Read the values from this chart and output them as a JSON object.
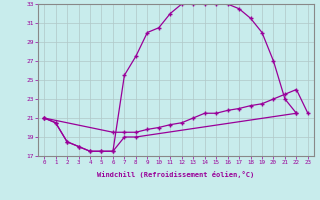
{
  "xlabel": "Windchill (Refroidissement éolien,°C)",
  "bg_color": "#c8ecec",
  "line_color": "#990099",
  "grid_color": "#b0c8c8",
  "xlim": [
    -0.5,
    23.5
  ],
  "ylim": [
    17,
    33
  ],
  "yticks": [
    17,
    19,
    21,
    23,
    25,
    27,
    29,
    31,
    33
  ],
  "xticks": [
    0,
    1,
    2,
    3,
    4,
    5,
    6,
    7,
    8,
    9,
    10,
    11,
    12,
    13,
    14,
    15,
    16,
    17,
    18,
    19,
    20,
    21,
    22,
    23
  ],
  "line1_x": [
    0,
    1,
    2,
    3,
    4,
    5,
    6,
    7,
    8,
    9,
    10,
    11,
    12,
    13,
    14,
    15,
    16,
    17,
    18,
    19,
    20,
    21,
    22
  ],
  "line1_y": [
    21.0,
    20.5,
    18.5,
    18.0,
    17.5,
    17.5,
    17.5,
    25.5,
    27.5,
    30.0,
    30.5,
    32.0,
    33.0,
    33.0,
    33.0,
    33.0,
    33.0,
    32.5,
    31.5,
    30.0,
    27.0,
    23.0,
    21.5
  ],
  "line2_x": [
    0,
    1,
    2,
    3,
    4,
    5,
    6,
    7,
    8,
    22
  ],
  "line2_y": [
    21.0,
    20.5,
    18.5,
    18.0,
    17.5,
    17.5,
    17.5,
    19.0,
    19.0,
    21.5
  ],
  "line3_x": [
    0,
    6,
    7,
    8,
    9,
    10,
    11,
    12,
    13,
    14,
    15,
    16,
    17,
    18,
    19,
    20,
    21,
    22,
    23
  ],
  "line3_y": [
    21.0,
    19.5,
    19.5,
    19.5,
    19.8,
    20.0,
    20.3,
    20.5,
    21.0,
    21.5,
    21.5,
    21.8,
    22.0,
    22.3,
    22.5,
    23.0,
    23.5,
    24.0,
    21.5
  ]
}
